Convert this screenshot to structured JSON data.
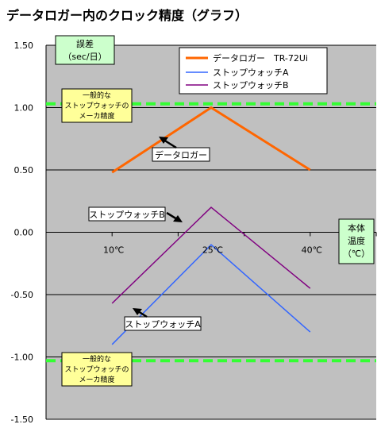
{
  "title": "データロガー内のクロック精度（グラフ）",
  "colors": {
    "plot_bg": "#C0C0C0",
    "datalogger": "#FF6600",
    "stopwatch_a": "#3366FF",
    "stopwatch_b": "#800080",
    "spec_line": "#33FF33",
    "green_box": "#CCFFCC",
    "yellow_box": "#FFFF99"
  },
  "axis": {
    "ylabel_lines": [
      "誤差",
      "（sec/日）"
    ],
    "xlabel_lines": [
      "本体",
      "温度",
      "（℃）"
    ]
  },
  "spec_note_lines": [
    "一般的な",
    "ストップウォッチの",
    "メーカ精度"
  ],
  "callouts": {
    "datalogger": "データロガー",
    "stopwatch_b": "ストップウォッチB",
    "stopwatch_a": "ストップウォッチA"
  },
  "chart_data": {
    "type": "line",
    "title": "データロガー内のクロック精度（グラフ）",
    "ylim": [
      -1.5,
      1.5
    ],
    "y_ticks": [
      "1.50",
      "1.00",
      "0.50",
      "0.00",
      "-0.50",
      "-1.00",
      "-1.50"
    ],
    "y_tick_values": [
      1.5,
      1.0,
      0.5,
      0.0,
      -0.5,
      -1.0,
      -1.5
    ],
    "x": [
      10,
      25,
      40
    ],
    "x_tick_labels": [
      "10℃",
      "25℃",
      "40℃"
    ],
    "series": [
      {
        "name": "データロガー　TR-72Ui",
        "values": [
          0.48,
          1.0,
          0.5
        ]
      },
      {
        "name": "ストップウォッチA",
        "values": [
          -0.9,
          -0.1,
          -0.8
        ]
      },
      {
        "name": "ストップウォッチB",
        "values": [
          -0.57,
          0.2,
          -0.45
        ]
      }
    ],
    "reference_lines": [
      1.03,
      -1.03
    ],
    "legend": "top-right",
    "grid": true
  }
}
